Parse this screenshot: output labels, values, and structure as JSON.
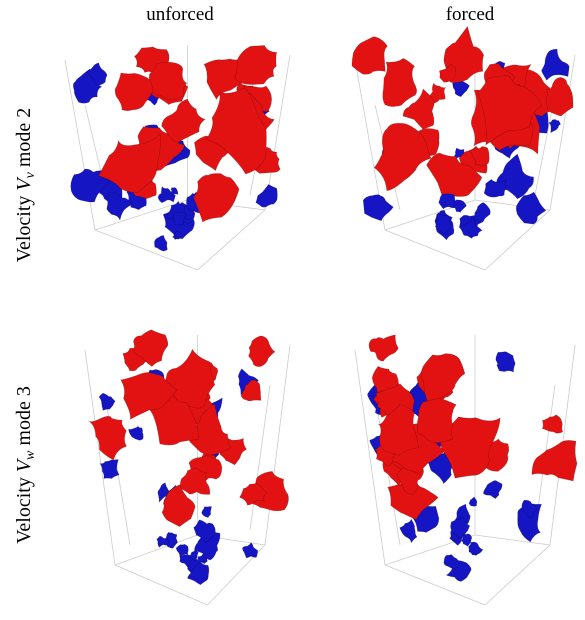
{
  "columns": [
    "unforced",
    "forced"
  ],
  "rows": [
    {
      "prefix": "Velocity",
      "symbol": "V",
      "subscript": "v",
      "suffix": "mode 2"
    },
    {
      "prefix": "Velocity",
      "symbol": "V",
      "subscript": "w",
      "suffix": "mode 3"
    }
  ]
}
